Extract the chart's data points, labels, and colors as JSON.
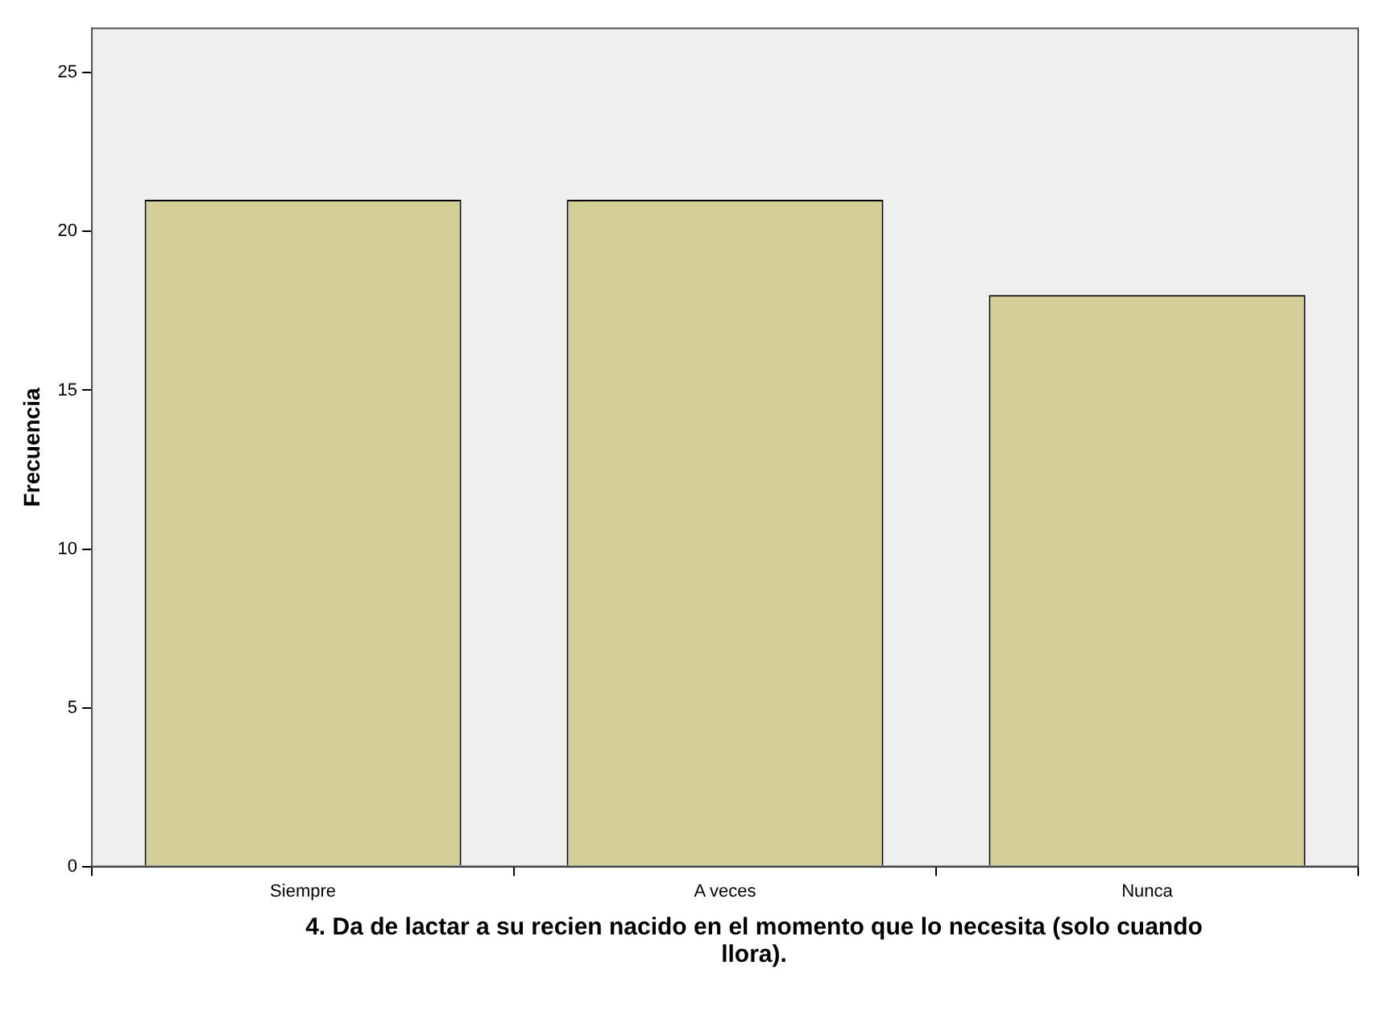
{
  "chart_data": {
    "type": "bar",
    "xlabel": "4. Da de lactar a su recien nacido en el momento que lo necesita (solo cuando llora).",
    "ylabel": "Frecuencia",
    "categories": [
      "Siempre",
      "A veces",
      "Nunca"
    ],
    "values": [
      21,
      21,
      18
    ],
    "color": "#d3ce97",
    "ylim": [
      0,
      26.4
    ],
    "yticks": [
      0,
      5,
      10,
      15,
      20,
      25
    ],
    "grid": false,
    "legend": false
  }
}
